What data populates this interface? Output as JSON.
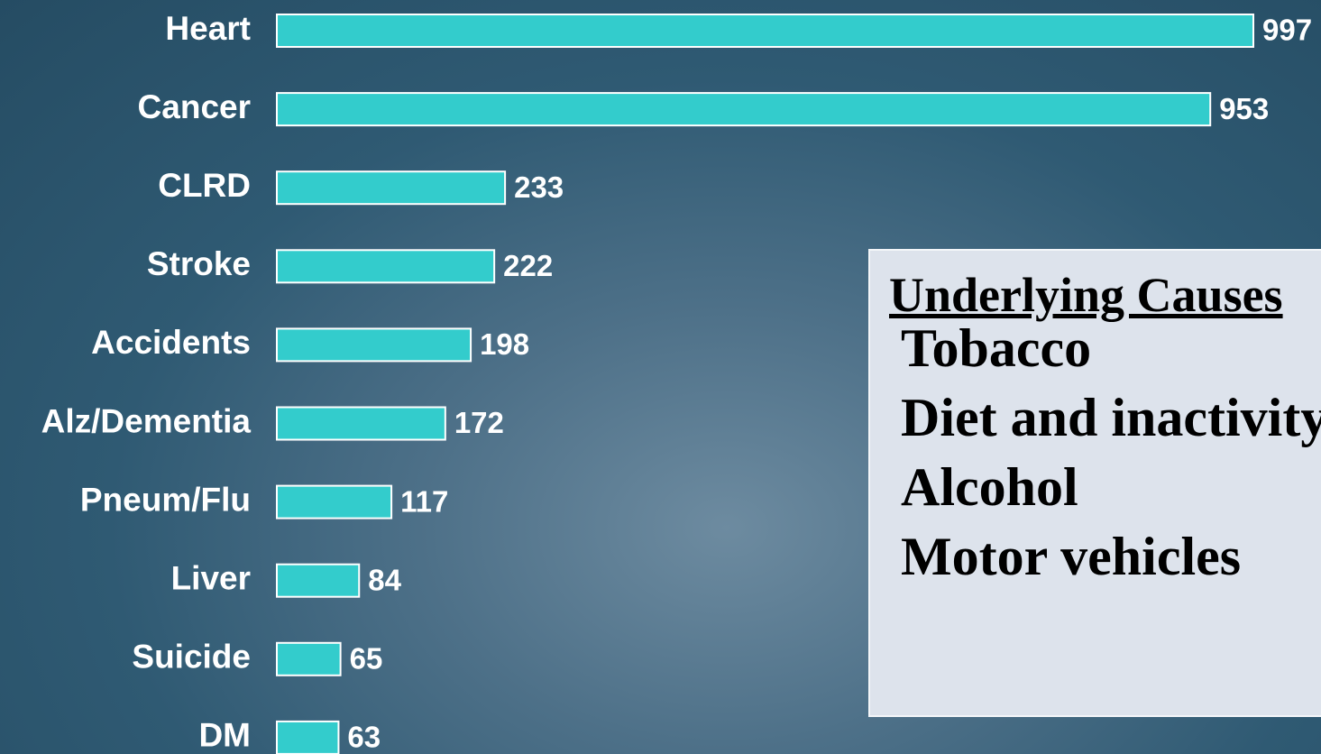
{
  "chart_data": {
    "type": "bar",
    "orientation": "horizontal",
    "categories": [
      "Heart",
      "Cancer",
      "CLRD",
      "Stroke",
      "Accidents",
      "Alz/Dementia",
      "Pneum/Flu",
      "Liver",
      "Suicide",
      "DM"
    ],
    "values": [
      997,
      953,
      233,
      222,
      198,
      172,
      117,
      84,
      65,
      63
    ],
    "color": "#33cccc"
  },
  "text_box": {
    "title": "Underlying Causes",
    "items": [
      "Tobacco",
      "Diet and inactivity",
      "Alcohol",
      "Motor vehicles"
    ]
  }
}
